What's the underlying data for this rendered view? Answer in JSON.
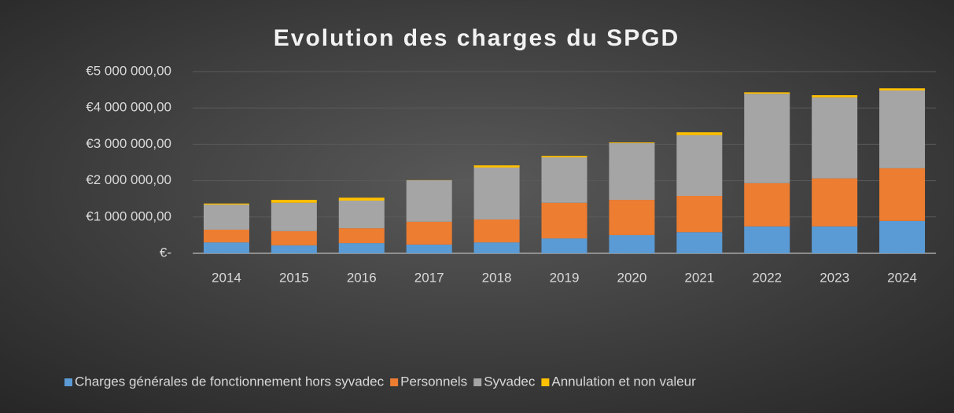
{
  "chart_data": {
    "type": "stacked_bar",
    "title": "Evolution des charges du SPGD",
    "categories": [
      "2014",
      "2015",
      "2016",
      "2017",
      "2018",
      "2019",
      "2020",
      "2021",
      "2022",
      "2023",
      "2024"
    ],
    "series": [
      {
        "name": "Charges générales de fonctionnement hors syvadec",
        "color": "#5b9bd5",
        "values": [
          300000,
          220000,
          280000,
          240000,
          300000,
          410000,
          500000,
          580000,
          740000,
          740000,
          890000
        ]
      },
      {
        "name": "Personnels",
        "color": "#ed7d31",
        "values": [
          350000,
          390000,
          410000,
          630000,
          630000,
          980000,
          970000,
          1000000,
          1190000,
          1320000,
          1450000
        ]
      },
      {
        "name": "Syvadec",
        "color": "#a5a5a5",
        "values": [
          690000,
          780000,
          760000,
          1140000,
          1430000,
          1250000,
          1560000,
          1670000,
          2460000,
          2230000,
          2140000
        ]
      },
      {
        "name": "Annulation et non valeur",
        "color": "#ffc000",
        "values": [
          30000,
          80000,
          80000,
          5000,
          60000,
          40000,
          20000,
          80000,
          40000,
          60000,
          60000
        ]
      }
    ],
    "ylim": [
      0,
      5000000
    ],
    "yticks": [
      {
        "value": 0,
        "label": "€-"
      },
      {
        "value": 1000000,
        "label": "€1 000 000,00"
      },
      {
        "value": 2000000,
        "label": "€2 000 000,00"
      },
      {
        "value": 3000000,
        "label": "€3 000 000,00"
      },
      {
        "value": 4000000,
        "label": "€4 000 000,00"
      },
      {
        "value": 5000000,
        "label": "€5 000 000,00"
      }
    ],
    "grid": true,
    "legend": "bottom"
  }
}
